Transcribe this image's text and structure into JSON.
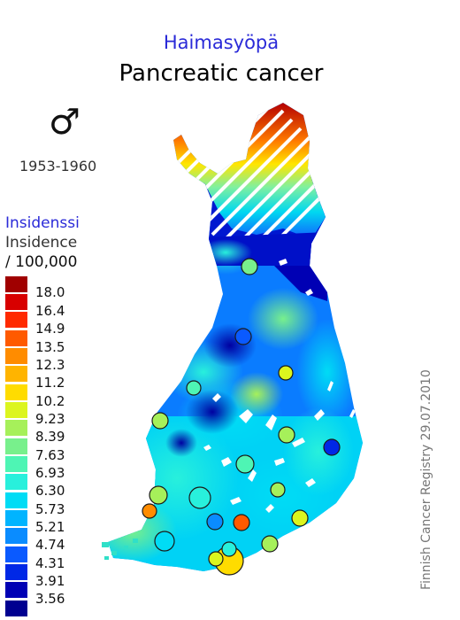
{
  "title_fi": "Haimasyöpä",
  "title_en": "Pancreatic cancer",
  "sex_symbol": "♂",
  "period": "1953-1960",
  "legend": {
    "title_fi": "Insidenssi",
    "title_en": "Insidence",
    "unit": "/ 100,000",
    "items": [
      {
        "label": "18.0",
        "color": "#a00000"
      },
      {
        "label": "16.4",
        "color": "#d80000"
      },
      {
        "label": "14.9",
        "color": "#ff2a00"
      },
      {
        "label": "13.5",
        "color": "#ff5a00"
      },
      {
        "label": "12.3",
        "color": "#ff8c00"
      },
      {
        "label": "11.2",
        "color": "#ffb400"
      },
      {
        "label": "10.2",
        "color": "#ffdc00"
      },
      {
        "label": "9.23",
        "color": "#dcf51e"
      },
      {
        "label": "8.39",
        "color": "#a6f05a"
      },
      {
        "label": "7.63",
        "color": "#78f08c"
      },
      {
        "label": "6.93",
        "color": "#4ef5b4"
      },
      {
        "label": "6.30",
        "color": "#28f0dc"
      },
      {
        "label": "5.73",
        "color": "#00dcf5"
      },
      {
        "label": "5.21",
        "color": "#00b4ff"
      },
      {
        "label": "4.74",
        "color": "#0a8cff"
      },
      {
        "label": "4.31",
        "color": "#0a5aff"
      },
      {
        "label": "3.91",
        "color": "#0028e6"
      },
      {
        "label": "3.56",
        "color": "#0000b4"
      },
      {
        "label": "",
        "color": "#000090"
      }
    ]
  },
  "credit": "Finnish Cancer Registry 29.07.2010"
}
